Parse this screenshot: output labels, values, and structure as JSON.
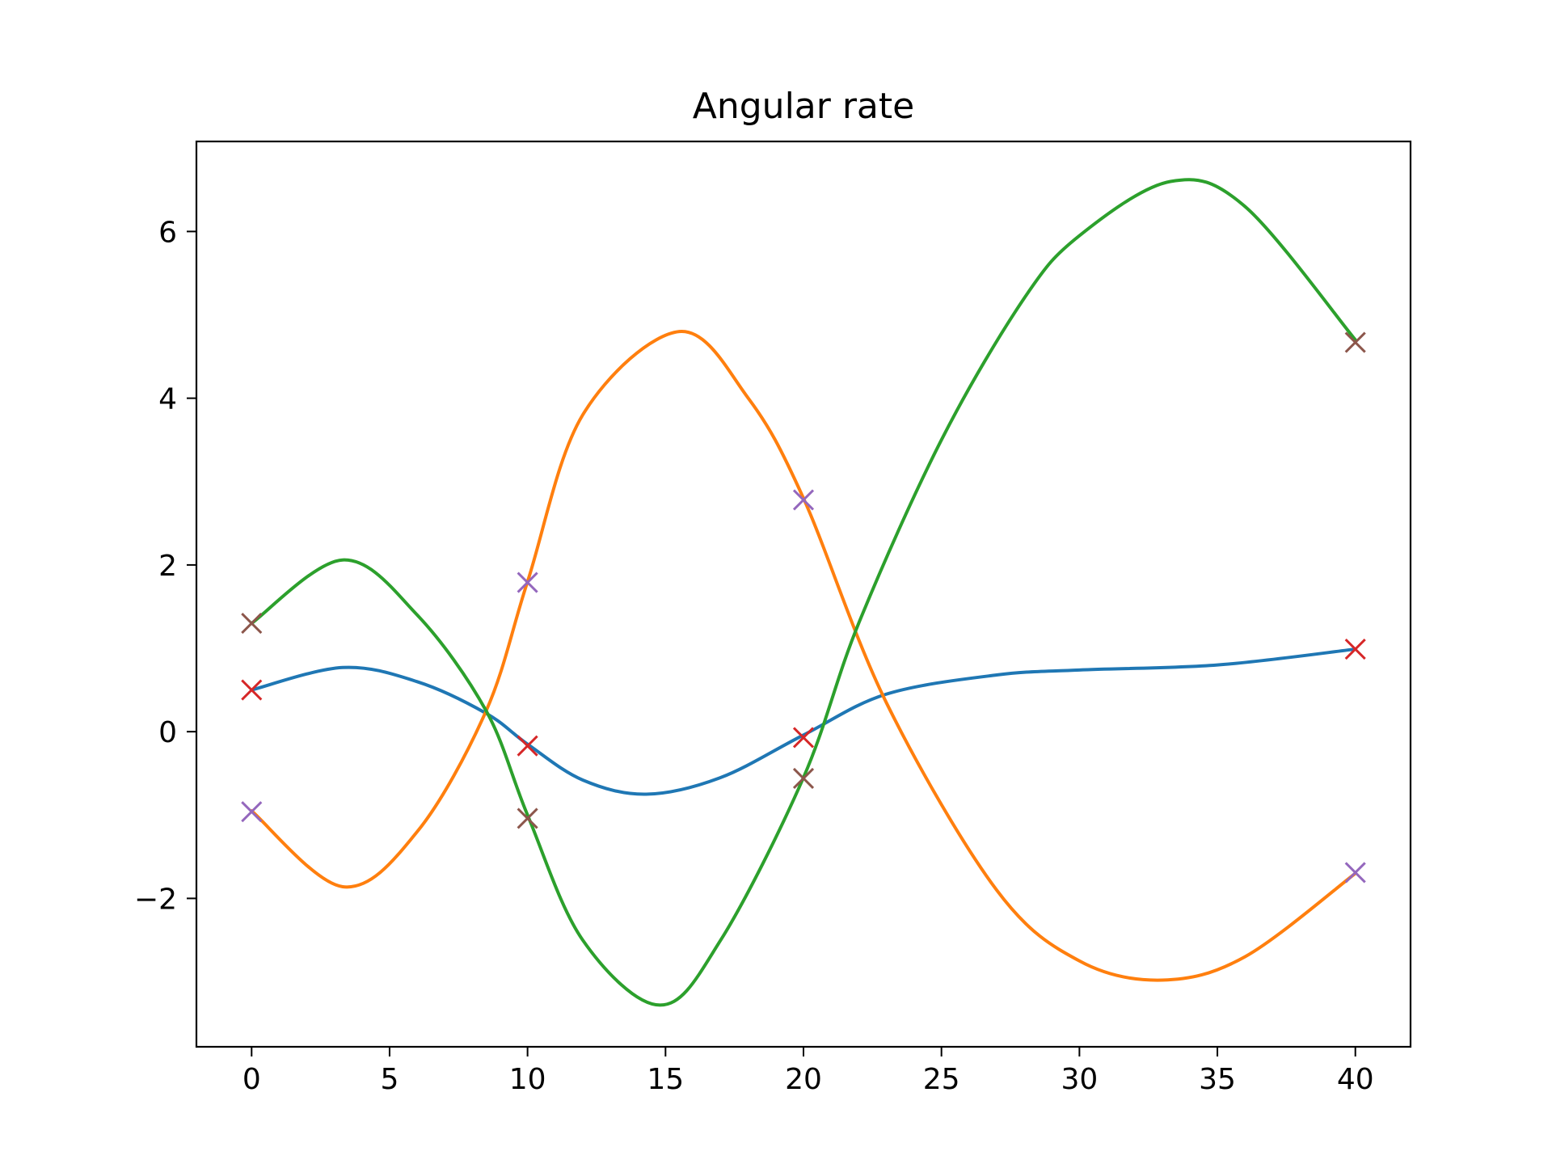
{
  "chart_data": {
    "type": "line",
    "title": "Angular rate",
    "xlabel": "",
    "ylabel": "",
    "xlim": [
      -2,
      42
    ],
    "ylim": [
      -3.78,
      7.08
    ],
    "xticks": [
      0,
      5,
      10,
      15,
      20,
      25,
      30,
      35,
      40
    ],
    "yticks": [
      -2,
      0,
      2,
      4,
      6
    ],
    "xtick_labels": [
      "0",
      "5",
      "10",
      "15",
      "20",
      "25",
      "30",
      "35",
      "40"
    ],
    "ytick_labels": [
      "−2",
      "0",
      "2",
      "4",
      "6"
    ],
    "grid": false,
    "legend": "none",
    "series": [
      {
        "color": "#1f77b4",
        "x": [
          0,
          3.3,
          6,
          8.5,
          10,
          12,
          14.3,
          17,
          20,
          23,
          27,
          30,
          35,
          40
        ],
        "y": [
          0.5,
          0.77,
          0.6,
          0.22,
          -0.15,
          -0.58,
          -0.75,
          -0.55,
          -0.04,
          0.45,
          0.68,
          0.74,
          0.8,
          0.99
        ]
      },
      {
        "color": "#ff7f0e",
        "x": [
          0,
          3.3,
          6,
          8.5,
          10,
          12,
          15.5,
          18,
          20,
          23,
          27,
          30,
          33,
          36,
          40
        ],
        "y": [
          -0.95,
          -1.86,
          -1.2,
          0.25,
          1.8,
          3.8,
          4.8,
          4.0,
          2.8,
          0.35,
          -1.9,
          -2.75,
          -2.98,
          -2.7,
          -1.7
        ]
      },
      {
        "color": "#2ca02c",
        "x": [
          0,
          3.3,
          6,
          8.5,
          10,
          12,
          14.8,
          17,
          20,
          22,
          25,
          28,
          30,
          33.3,
          36,
          40
        ],
        "y": [
          1.3,
          2.06,
          1.4,
          0.25,
          -1.0,
          -2.5,
          -3.28,
          -2.5,
          -0.55,
          1.3,
          3.5,
          5.2,
          5.95,
          6.6,
          6.3,
          4.7
        ]
      }
    ],
    "markers": [
      {
        "color": "#d62728",
        "x": [
          0,
          10,
          20,
          40
        ],
        "y": [
          0.5,
          -0.17,
          -0.07,
          0.99
        ]
      },
      {
        "color": "#9467bd",
        "x": [
          0,
          10,
          20,
          40
        ],
        "y": [
          -0.96,
          1.79,
          2.78,
          -1.69
        ]
      },
      {
        "color": "#8c564b",
        "x": [
          0,
          10,
          20,
          40
        ],
        "y": [
          1.3,
          -1.04,
          -0.56,
          4.67
        ]
      }
    ]
  }
}
